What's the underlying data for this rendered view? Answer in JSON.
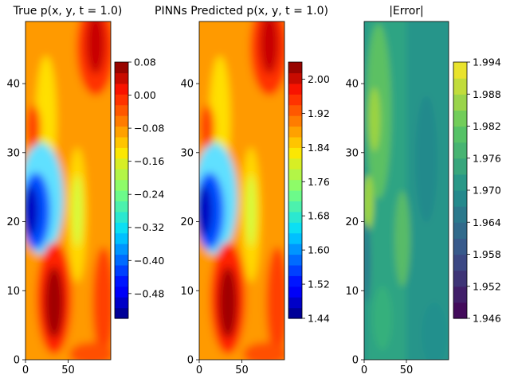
{
  "chart_data": [
    {
      "type": "heatmap",
      "title": "True p(x, y, t = 1.0)",
      "x_range": [
        0,
        100
      ],
      "y_range": [
        0,
        49
      ],
      "x_ticks": [
        {
          "value": 0,
          "label": "0"
        },
        {
          "value": 50,
          "label": "50"
        }
      ],
      "y_ticks": [
        {
          "value": 0,
          "label": "0"
        },
        {
          "value": 10,
          "label": "10"
        },
        {
          "value": 20,
          "label": "20"
        },
        {
          "value": 30,
          "label": "30"
        },
        {
          "value": 40,
          "label": "40"
        }
      ],
      "colormap": "jet",
      "colorbar": {
        "range": [
          -0.54,
          0.08
        ],
        "ticks": [
          {
            "value": 0.08,
            "label": "0.08"
          },
          {
            "value": 0.0,
            "label": "0.00"
          },
          {
            "value": -0.08,
            "label": "−0.08"
          },
          {
            "value": -0.16,
            "label": "−0.16"
          },
          {
            "value": -0.24,
            "label": "−0.24"
          },
          {
            "value": -0.32,
            "label": "−0.32"
          },
          {
            "value": -0.4,
            "label": "−0.40"
          },
          {
            "value": -0.48,
            "label": "−0.48"
          }
        ]
      }
    },
    {
      "type": "heatmap",
      "title": "PINNs Predicted p(x, y, t = 1.0)",
      "x_range": [
        0,
        100
      ],
      "y_range": [
        0,
        49
      ],
      "x_ticks": [
        {
          "value": 0,
          "label": "0"
        },
        {
          "value": 50,
          "label": "50"
        }
      ],
      "y_ticks": [
        {
          "value": 0,
          "label": "0"
        },
        {
          "value": 10,
          "label": "10"
        },
        {
          "value": 20,
          "label": "20"
        },
        {
          "value": 30,
          "label": "30"
        },
        {
          "value": 40,
          "label": "40"
        }
      ],
      "colormap": "jet",
      "colorbar": {
        "range": [
          1.44,
          2.04
        ],
        "ticks": [
          {
            "value": 2.0,
            "label": "2.00"
          },
          {
            "value": 1.92,
            "label": "1.92"
          },
          {
            "value": 1.84,
            "label": "1.84"
          },
          {
            "value": 1.76,
            "label": "1.76"
          },
          {
            "value": 1.68,
            "label": "1.68"
          },
          {
            "value": 1.6,
            "label": "1.60"
          },
          {
            "value": 1.52,
            "label": "1.52"
          },
          {
            "value": 1.44,
            "label": "1.44"
          }
        ]
      }
    },
    {
      "type": "heatmap",
      "title": "|Error|",
      "x_range": [
        0,
        100
      ],
      "y_range": [
        0,
        49
      ],
      "x_ticks": [
        {
          "value": 0,
          "label": "0"
        },
        {
          "value": 50,
          "label": "50"
        }
      ],
      "y_ticks": [
        {
          "value": 0,
          "label": "0"
        },
        {
          "value": 10,
          "label": "10"
        },
        {
          "value": 20,
          "label": "20"
        },
        {
          "value": 30,
          "label": "30"
        },
        {
          "value": 40,
          "label": "40"
        }
      ],
      "colormap": "viridis",
      "colorbar": {
        "range": [
          1.946,
          1.994
        ],
        "ticks": [
          {
            "value": 1.994,
            "label": "1.994"
          },
          {
            "value": 1.988,
            "label": "1.988"
          },
          {
            "value": 1.982,
            "label": "1.982"
          },
          {
            "value": 1.976,
            "label": "1.976"
          },
          {
            "value": 1.97,
            "label": "1.970"
          },
          {
            "value": 1.964,
            "label": "1.964"
          },
          {
            "value": 1.958,
            "label": "1.958"
          },
          {
            "value": 1.952,
            "label": "1.952"
          },
          {
            "value": 1.946,
            "label": "1.946"
          }
        ]
      }
    }
  ]
}
